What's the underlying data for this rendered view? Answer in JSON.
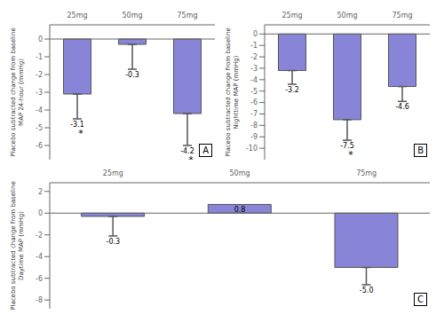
{
  "chart_data": [
    {
      "type": "bar",
      "title": "A",
      "y_label": "Placebo subtracted change from baseline\nMAP 24-hour (mmHg)",
      "categories": [
        "25mg",
        "50mg",
        "75mg"
      ],
      "values": [
        -3.1,
        -0.3,
        -4.2
      ],
      "errors": [
        1.4,
        1.4,
        1.8
      ],
      "value_labels": [
        "-3.1",
        "-0.3",
        "-4.2"
      ],
      "data_labels": true,
      "annotations": [
        {
          "x": "25mg",
          "text": "*"
        },
        {
          "x": "75mg",
          "text": "*"
        }
      ],
      "ylim": [
        -6.8,
        0.8
      ],
      "yticks": [
        0,
        -1,
        -2,
        -3,
        -4,
        -5,
        -6
      ],
      "grid": false,
      "color": "#8884d8"
    },
    {
      "type": "bar",
      "title": "B",
      "y_label": "Placebo subtracted change from baseline\nNighttime MAP (mmHg)",
      "categories": [
        "25mg",
        "50mg",
        "75mg"
      ],
      "values": [
        -3.2,
        -7.5,
        -4.6
      ],
      "errors": [
        1.2,
        1.8,
        1.3
      ],
      "value_labels": [
        "-3.2",
        "-7.5",
        "-4.6"
      ],
      "data_labels": true,
      "annotations": [
        {
          "x": "50mg",
          "text": "*"
        }
      ],
      "ylim": [
        -11.0,
        0.8
      ],
      "yticks": [
        0,
        -1,
        -2,
        -3,
        -4,
        -5,
        -6,
        -7,
        -8,
        -9,
        -10
      ],
      "grid": false,
      "color": "#8884d8"
    },
    {
      "type": "bar",
      "title": "C",
      "y_label": "Placebo subtracted change from baseline\nDaytime MAP (mmHg)",
      "categories": [
        "25mg",
        "50mg",
        "75mg"
      ],
      "values": [
        -0.3,
        0.8,
        -5.0
      ],
      "errors": [
        1.8,
        0.0,
        1.6
      ],
      "value_labels": [
        "-0.3",
        "0.8",
        "-5.0"
      ],
      "data_labels": true,
      "ylim": [
        -8.8,
        2.8
      ],
      "yticks": [
        2,
        0,
        -2,
        -4,
        -6,
        -8
      ],
      "grid": false,
      "color": "#8884d8"
    }
  ]
}
